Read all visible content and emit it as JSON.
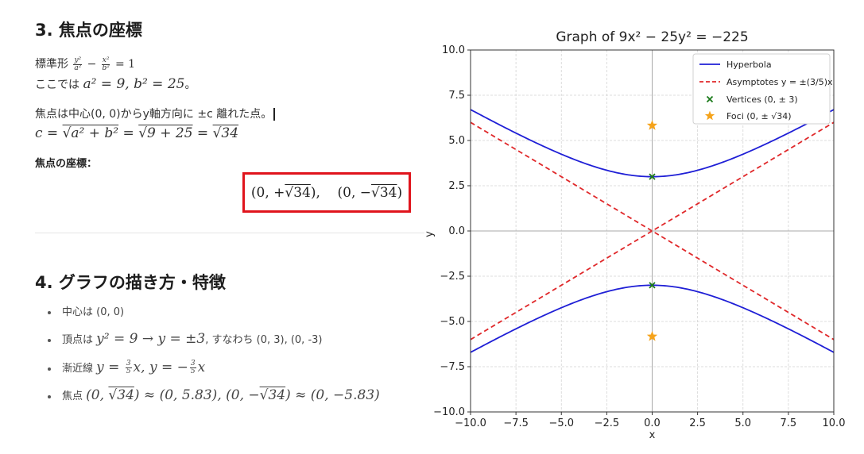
{
  "left": {
    "section3": {
      "heading": "3. 焦点の座標",
      "standard_form_prefix": "標準形",
      "here_prefix": "ここでは",
      "here_period": "。",
      "foci_sentence": "焦点は中心(0, 0)からy軸方向に ±c 離れた点。",
      "foci_label": "焦点の座標："
    },
    "section4": {
      "heading": "4. グラフの描き方・特徴",
      "b1": "中心は (0, 0)",
      "b2_prefix": "頂点は",
      "b2_suffix": ", すなわち (0, 3), (0, -3)",
      "b3_prefix": "漸近線",
      "b4_prefix": "焦点"
    }
  },
  "chart_data": {
    "type": "line",
    "title": "Graph of 9x² − 25y² = −225",
    "xlabel": "x",
    "ylabel": "y",
    "xlim": [
      -10,
      10
    ],
    "ylim": [
      -10,
      10
    ],
    "xticks": [
      "−10.0",
      "−7.5",
      "−5.0",
      "−2.5",
      "0.0",
      "2.5",
      "5.0",
      "7.5",
      "10.0"
    ],
    "yticks": [
      "10.0",
      "7.5",
      "5.0",
      "2.5",
      "0.0",
      "−2.5",
      "−5.0",
      "−7.5",
      "−10.0"
    ],
    "grid": true,
    "legend_position": "top-right",
    "series": [
      {
        "name": "Hyperbola",
        "kind": "line",
        "color": "#1f1fd6",
        "equation": "y = ±3·sqrt(1 + x²/25)"
      },
      {
        "name": "Asymptotes y = ±(3/5)x",
        "kind": "dashed",
        "color": "#e0282a",
        "slope": [
          0.6,
          -0.6
        ]
      },
      {
        "name": "Vertices (0, ± 3)",
        "kind": "marker-x",
        "color": "#1a7a1a",
        "points": [
          [
            0,
            3
          ],
          [
            0,
            -3
          ]
        ]
      },
      {
        "name": "Foci (0, ± √34)",
        "kind": "marker-star",
        "color": "#f5a31b",
        "points": [
          [
            0,
            5.83
          ],
          [
            0,
            -5.83
          ]
        ]
      }
    ]
  }
}
